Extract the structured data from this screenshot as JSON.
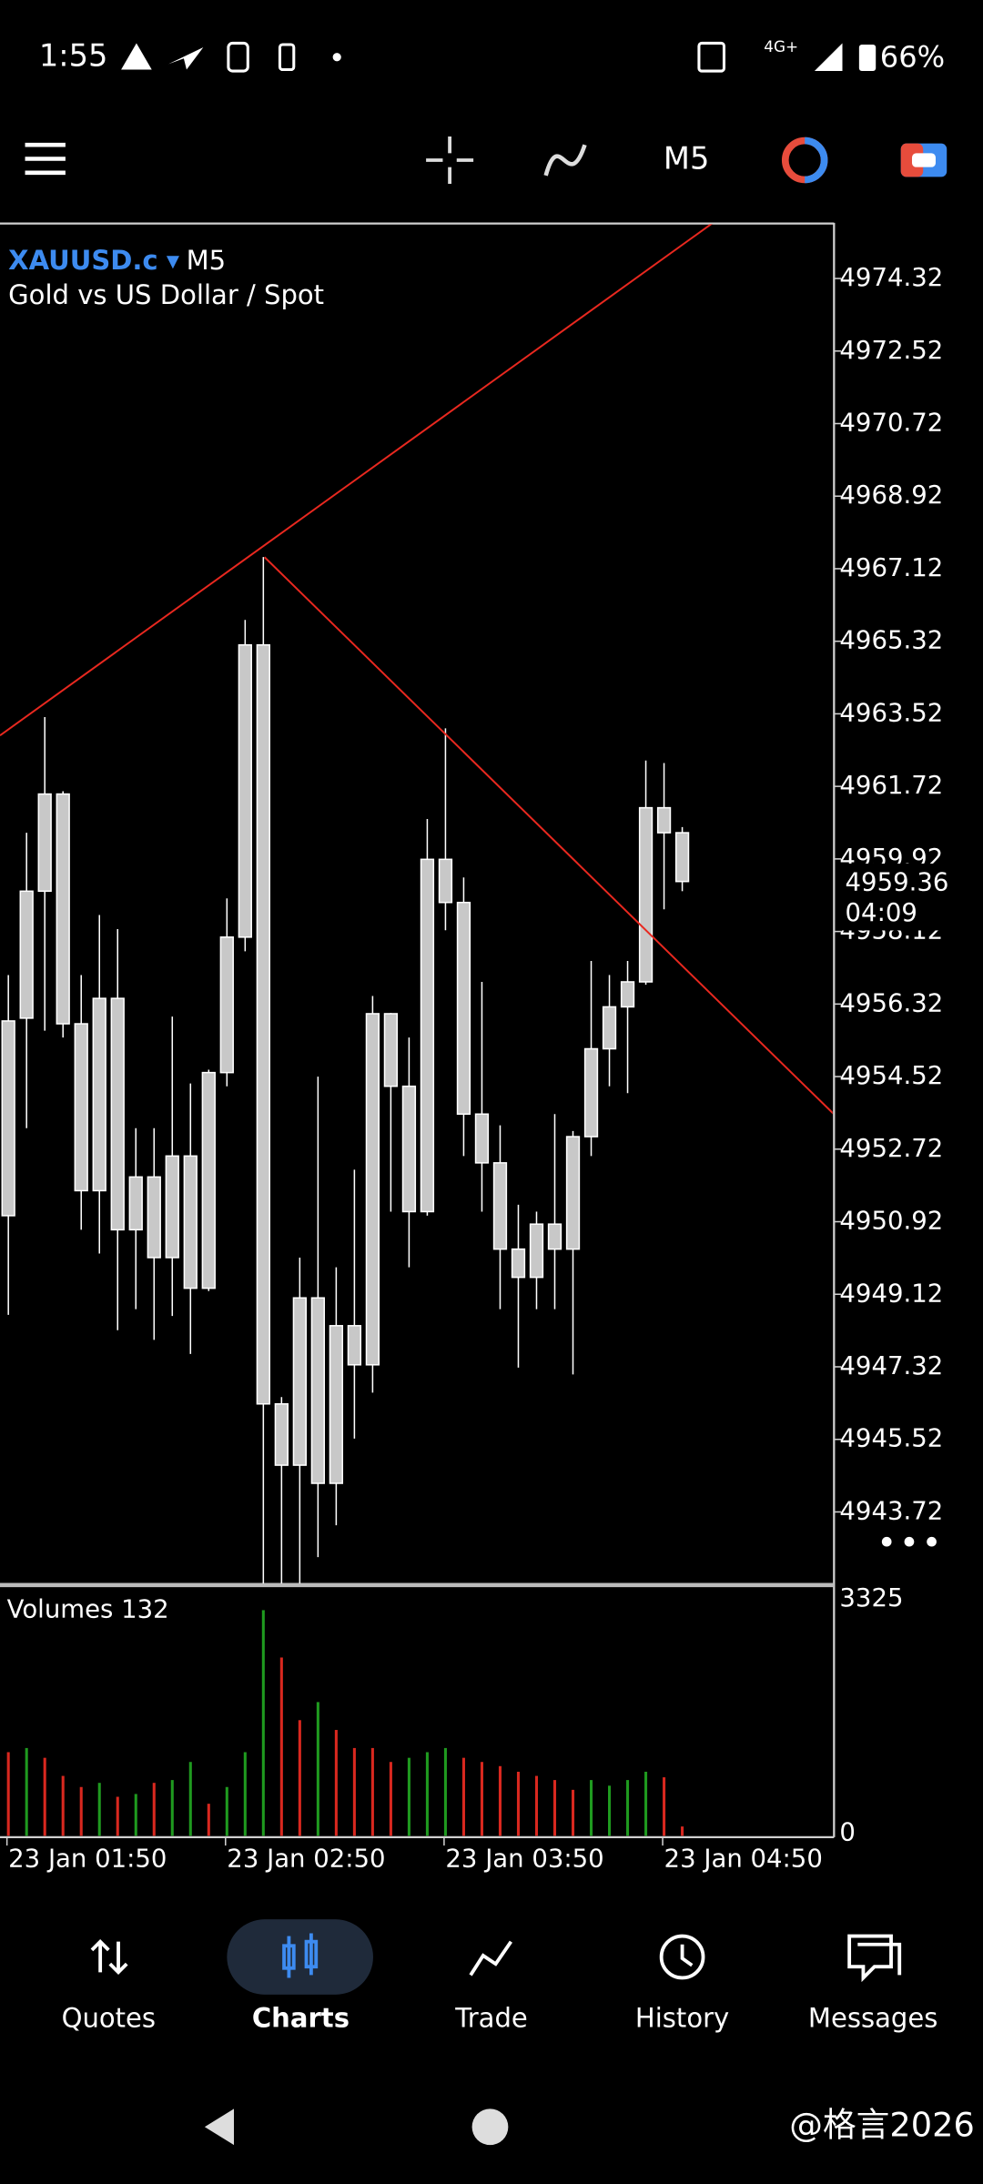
{
  "status_bar": {
    "time": "1:55",
    "network": "4G+",
    "battery": "66%"
  },
  "toolbar": {
    "timeframe": "M5"
  },
  "chart_data": {
    "type": "candlestick",
    "symbol": "XAUUSD.c",
    "description": "Gold vs US Dollar / Spot",
    "countdown": "04:09",
    "categories": [
      "23 Jan 01:50",
      null,
      null,
      null,
      null,
      null,
      null,
      null,
      null,
      null,
      null,
      null,
      "23 Jan 02:50",
      null,
      null,
      null,
      null,
      null,
      null,
      null,
      null,
      null,
      null,
      null,
      "23 Jan 03:50",
      null,
      null,
      null,
      null,
      null,
      null,
      null,
      null,
      null,
      null,
      null,
      "23 Jan 04:50",
      null
    ],
    "open": [
      4951.07,
      4955.97,
      4959.12,
      4961.53,
      4955.83,
      4951.69,
      4956.46,
      4950.72,
      4952.03,
      4950.03,
      4952.55,
      4949.27,
      4954.62,
      4957.98,
      4965.23,
      4946.4,
      4944.88,
      4949.03,
      4944.43,
      4948.34,
      4947.37,
      4956.08,
      4954.28,
      4951.17,
      4959.91,
      4958.84,
      4953.59,
      4952.38,
      4950.24,
      4949.54,
      4950.86,
      4950.24,
      4953.03,
      4955.21,
      4956.25,
      4956.87,
      4961.19,
      4960.57
    ],
    "high": [
      4957.04,
      4960.57,
      4963.44,
      4961.6,
      4957.04,
      4958.53,
      4958.18,
      4953.24,
      4953.24,
      4956.01,
      4954.35,
      4954.69,
      4958.94,
      4965.85,
      4967.41,
      4946.57,
      4950.03,
      4954.52,
      4949.79,
      4952.21,
      4956.52,
      4956.1,
      4955.49,
      4960.91,
      4963.16,
      4959.46,
      4956.87,
      4953.31,
      4951.34,
      4951.17,
      4953.59,
      4953.17,
      4957.39,
      4957.04,
      4957.39,
      4962.36,
      4962.3,
      4960.71
    ],
    "low": [
      4948.61,
      4953.24,
      4955.66,
      4955.49,
      4950.72,
      4950.13,
      4948.23,
      4948.75,
      4947.99,
      4948.58,
      4947.64,
      4949.2,
      4954.28,
      4957.63,
      4941.94,
      4941.94,
      4941.94,
      4942.6,
      4943.39,
      4945.54,
      4946.68,
      4951.17,
      4949.79,
      4951.07,
      4958.15,
      4952.55,
      4951.17,
      4948.75,
      4947.3,
      4948.75,
      4948.75,
      4947.13,
      4952.55,
      4954.28,
      4954.11,
      4956.8,
      4958.67,
      4959.12
    ],
    "close": [
      4955.9,
      4959.12,
      4961.53,
      4955.83,
      4951.69,
      4956.46,
      4950.72,
      4952.03,
      4950.03,
      4952.55,
      4949.27,
      4954.62,
      4957.98,
      4965.23,
      4946.4,
      4944.88,
      4949.03,
      4944.43,
      4948.34,
      4947.37,
      4956.08,
      4954.28,
      4951.17,
      4959.91,
      4958.84,
      4953.59,
      4952.38,
      4950.24,
      4949.54,
      4950.86,
      4950.24,
      4953.03,
      4955.21,
      4956.25,
      4956.87,
      4961.19,
      4960.57,
      4959.36
    ],
    "color": "#c8c8c8",
    "ylim": [
      4941.94,
      4975.7
    ],
    "yticks": [
      4974.32,
      4972.52,
      4970.72,
      4968.92,
      4967.12,
      4965.32,
      4963.52,
      4961.72,
      4959.92,
      4958.12,
      4956.32,
      4954.52,
      4952.72,
      4950.92,
      4949.12,
      4947.32,
      4945.52,
      4943.72
    ],
    "volumes": {
      "name": "Volumes",
      "values": [
        1188,
        1247,
        1108,
        851,
        693,
        752,
        554,
        594,
        752,
        792,
        1049,
        455,
        693,
        1188,
        3206,
        2533,
        1643,
        1900,
        1504,
        1247,
        1247,
        1049,
        1108,
        1188,
        1247,
        1108,
        1049,
        990,
        910,
        851,
        792,
        653,
        792,
        712,
        792,
        910,
        831,
        132
      ],
      "colors": [
        "#d9281f",
        "#1f9a1f",
        "#d9281f",
        "#d9281f",
        "#d9281f",
        "#1f9a1f",
        "#d9281f",
        "#1f9a1f",
        "#d9281f",
        "#1f9a1f",
        "#1f9a1f",
        "#d9281f",
        "#1f9a1f",
        "#1f9a1f",
        "#1f9a1f",
        "#d9281f",
        "#d9281f",
        "#1f9a1f",
        "#d9281f",
        "#d9281f",
        "#d9281f",
        "#d9281f",
        "#1f9a1f",
        "#1f9a1f",
        "#1f9a1f",
        "#d9281f",
        "#d9281f",
        "#d9281f",
        "#d9281f",
        "#d9281f",
        "#d9281f",
        "#d9281f",
        "#1f9a1f",
        "#1f9a1f",
        "#1f9a1f",
        "#1f9a1f",
        "#d9281f",
        "#d9281f"
      ],
      "ylim": [
        0,
        3325
      ],
      "yticks": [
        0,
        3325
      ]
    }
  },
  "bottom_nav": {
    "tabs": [
      "Quotes",
      "Charts",
      "Trade",
      "History",
      "Messages"
    ],
    "active": "Charts"
  },
  "watermark": "@格言2026"
}
